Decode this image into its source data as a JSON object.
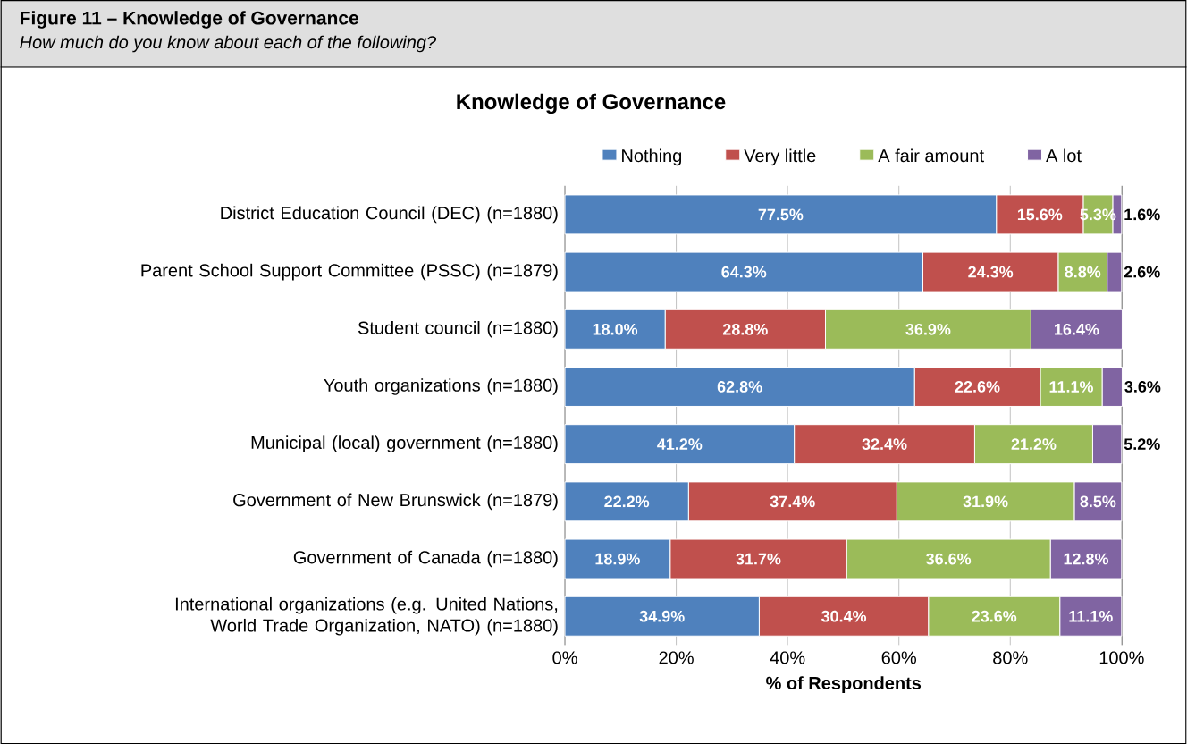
{
  "chart_data": {
    "type": "bar",
    "orientation": "horizontal",
    "stacked": true,
    "title": "Knowledge of Governance",
    "subtitle": "How much do you know about each of the following?",
    "annotations": [
      "Figure 11 – Knowledge of Governance"
    ],
    "xlabel": "% of Respondents",
    "categories": [
      "District Education Council (DEC)  (n=1880)",
      "Parent School Support Committee (PSSC) (n=1879)",
      "Student council (n=1880)",
      "Youth organizations (n=1880)",
      "Municipal (local) government (n=1880)",
      "Government of New Brunswick (n=1879)",
      "Government of Canada (n=1880)",
      "International organizations (e.g. United Nations, World Trade Organization, NATO) (n=1880)"
    ],
    "series": [
      {
        "name": "Nothing",
        "color": "#4f81bd",
        "values": [
          77.5,
          64.3,
          18.0,
          62.8,
          41.2,
          22.2,
          18.9,
          34.9
        ],
        "value_labels": [
          "77.5%",
          "64.3%",
          "18.0%",
          "62.8%",
          "41.2%",
          "22.2%",
          "18.9%",
          "34.9%"
        ]
      },
      {
        "name": "Very little",
        "color": "#c0504d",
        "values": [
          15.6,
          24.3,
          28.8,
          22.6,
          32.4,
          37.4,
          31.7,
          30.4
        ],
        "value_labels": [
          "15.6%",
          "24.3%",
          "28.8%",
          "22.6%",
          "32.4%",
          "37.4%",
          "31.7%",
          "30.4%"
        ]
      },
      {
        "name": "A fair amount",
        "color": "#9bbb59",
        "values": [
          5.3,
          8.8,
          36.9,
          11.1,
          21.2,
          31.9,
          36.6,
          23.6
        ],
        "value_labels": [
          "5.3%",
          "8.8%",
          "36.9%",
          "11.1%",
          "21.2%",
          "31.9%",
          "36.6%",
          "23.6%"
        ]
      },
      {
        "name": "A lot",
        "color": "#8064a2",
        "values": [
          1.6,
          2.6,
          16.4,
          3.6,
          5.2,
          8.5,
          12.8,
          11.1
        ],
        "value_labels": [
          "1.6%",
          "2.6%",
          "16.4%",
          "3.6%",
          "5.2%",
          "8.5%",
          "12.8%",
          "11.1%"
        ]
      }
    ],
    "xlim": [
      0,
      100.1
    ],
    "xticks": [
      {
        "value": 0,
        "label": "0%"
      },
      {
        "value": 20,
        "label": "20%"
      },
      {
        "value": 40,
        "label": "40%"
      },
      {
        "value": 60,
        "label": "60%"
      },
      {
        "value": 80,
        "label": "80%"
      },
      {
        "value": 100,
        "label": "100%"
      }
    ],
    "grid": "x",
    "legend": "top"
  }
}
